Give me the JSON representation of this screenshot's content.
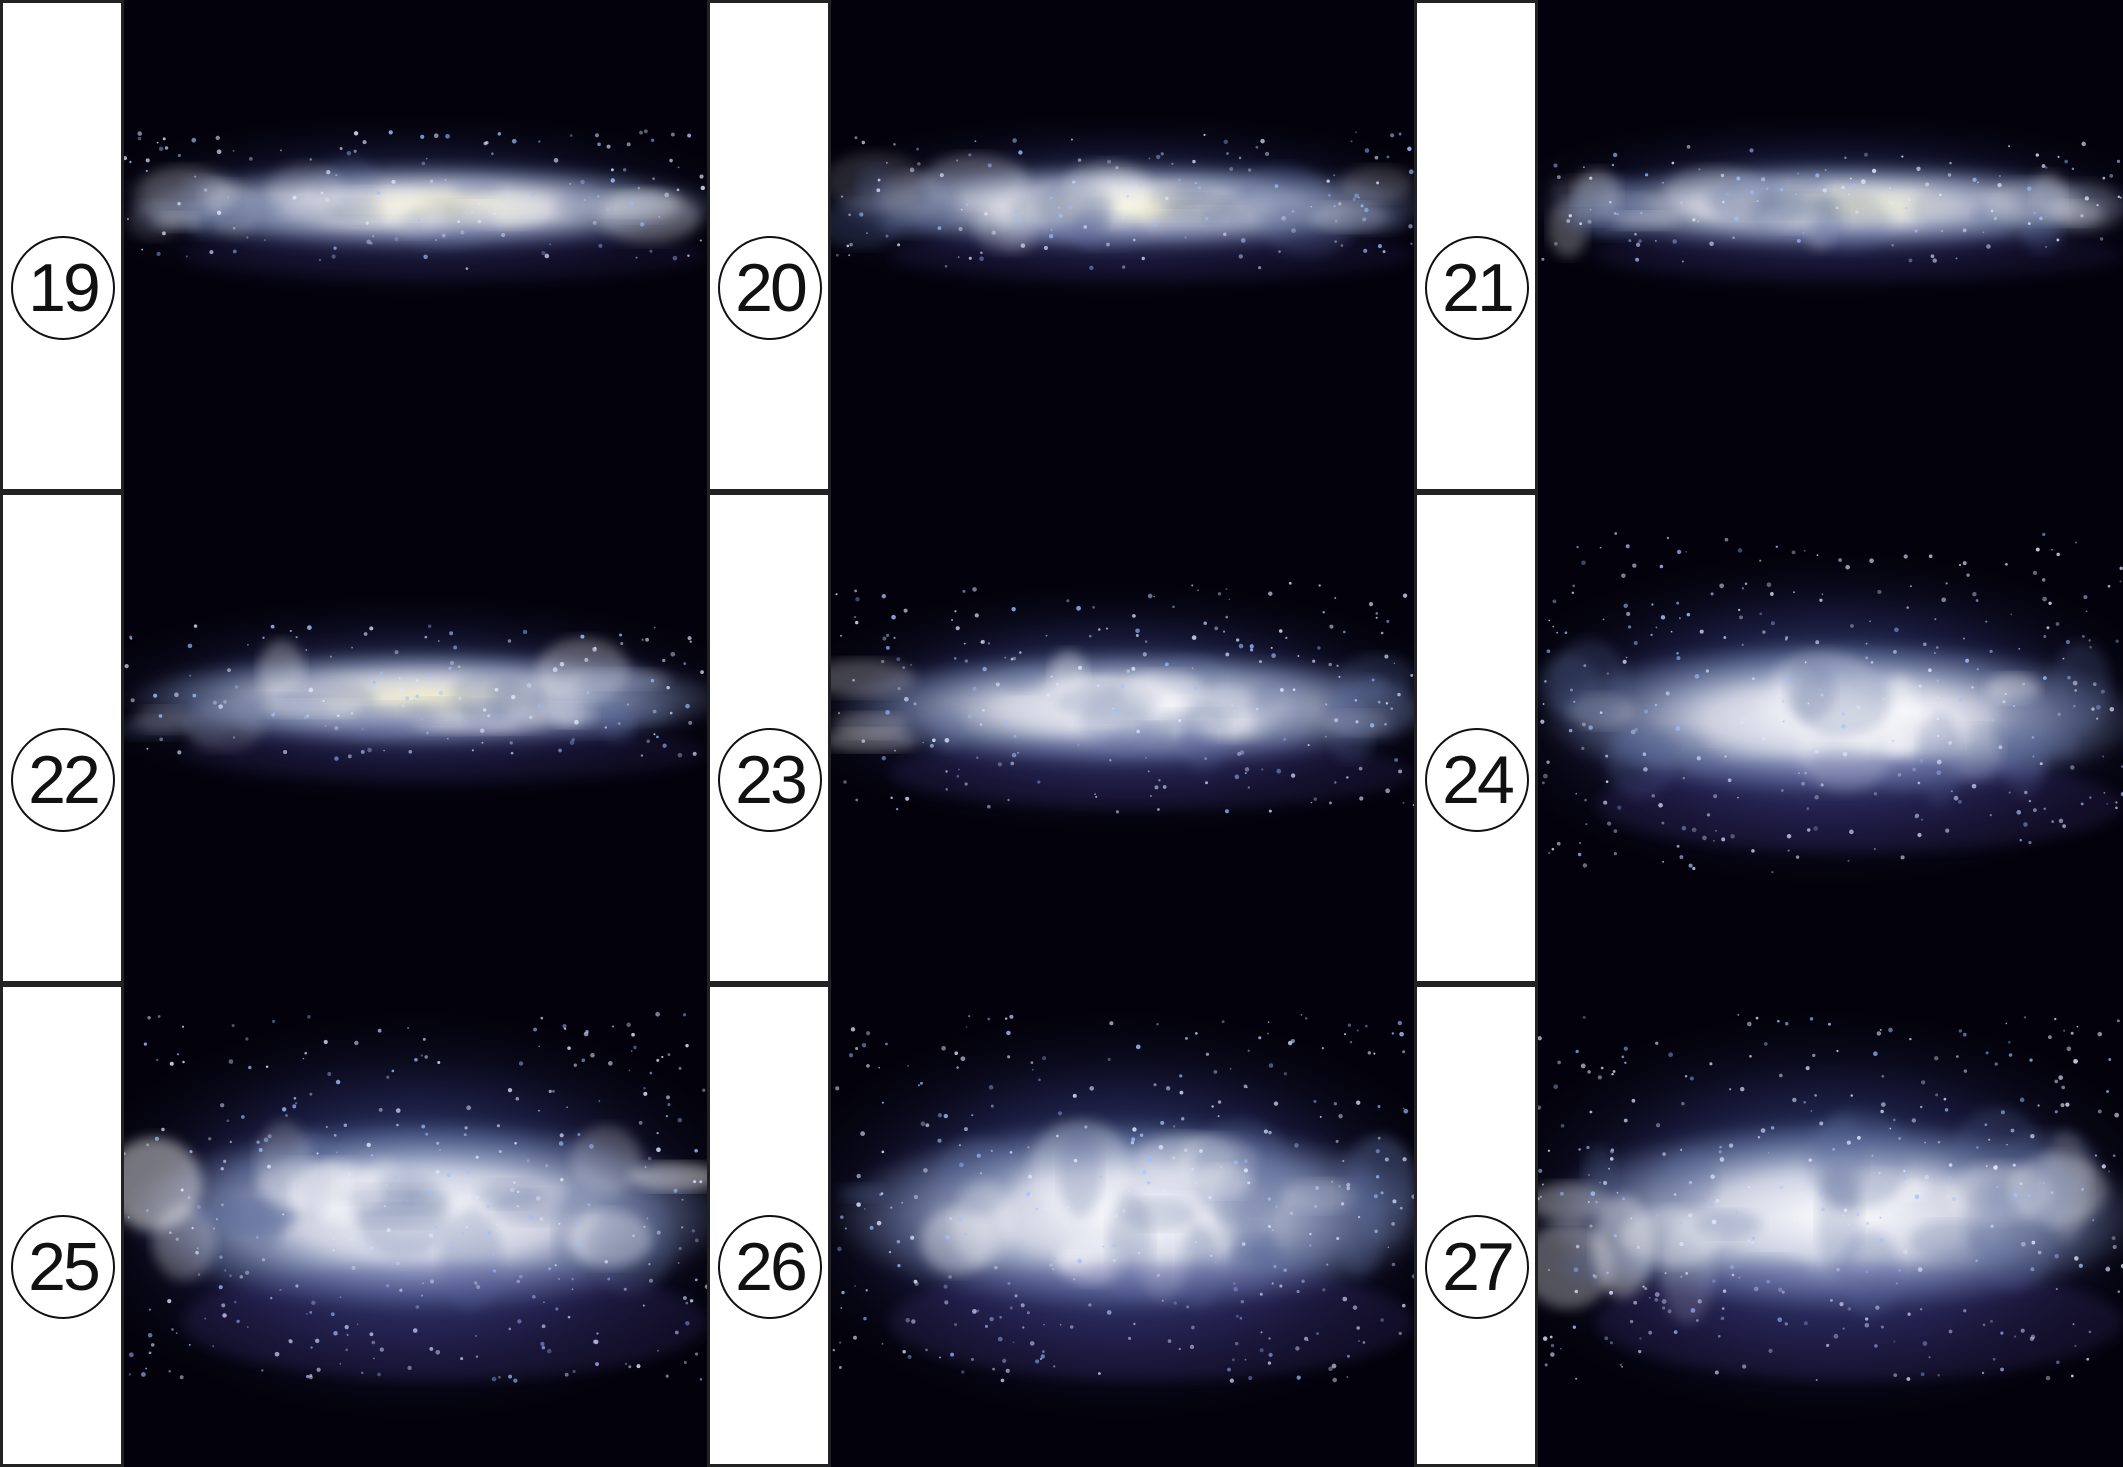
{
  "frames": [
    {
      "label": "19",
      "band": 0.42,
      "thick": 0.09,
      "glow": 0.55,
      "core": "#f4efc8",
      "halo": "#8fa8d8",
      "scatter": 0.25
    },
    {
      "label": "20",
      "band": 0.42,
      "thick": 0.09,
      "glow": 0.6,
      "core": "#f4f0c6",
      "halo": "#8fa8d8",
      "scatter": 0.25
    },
    {
      "label": "21",
      "band": 0.42,
      "thick": 0.09,
      "glow": 0.6,
      "core": "#f2f0c8",
      "halo": "#8fb0dc",
      "scatter": 0.2
    },
    {
      "label": "22",
      "band": 0.42,
      "thick": 0.1,
      "glow": 0.65,
      "core": "#f6f2cc",
      "halo": "#90a8dc",
      "scatter": 0.25
    },
    {
      "label": "23",
      "band": 0.44,
      "thick": 0.12,
      "glow": 0.8,
      "core": "#ffffff",
      "halo": "#7ea6e0",
      "scatter": 0.55
    },
    {
      "label": "24",
      "band": 0.46,
      "thick": 0.16,
      "glow": 0.9,
      "core": "#ffffff",
      "halo": "#6e9ae0",
      "scatter": 0.9
    },
    {
      "label": "25",
      "band": 0.48,
      "thick": 0.2,
      "glow": 0.95,
      "core": "#ffffff",
      "halo": "#6a98e0",
      "scatter": 1.0
    },
    {
      "label": "26",
      "band": 0.48,
      "thick": 0.2,
      "glow": 0.95,
      "core": "#ffffff",
      "halo": "#6a98e0",
      "scatter": 1.0
    },
    {
      "label": "27",
      "band": 0.48,
      "thick": 0.2,
      "glow": 0.92,
      "core": "#ffffff",
      "halo": "#6a98e0",
      "scatter": 1.0
    }
  ]
}
